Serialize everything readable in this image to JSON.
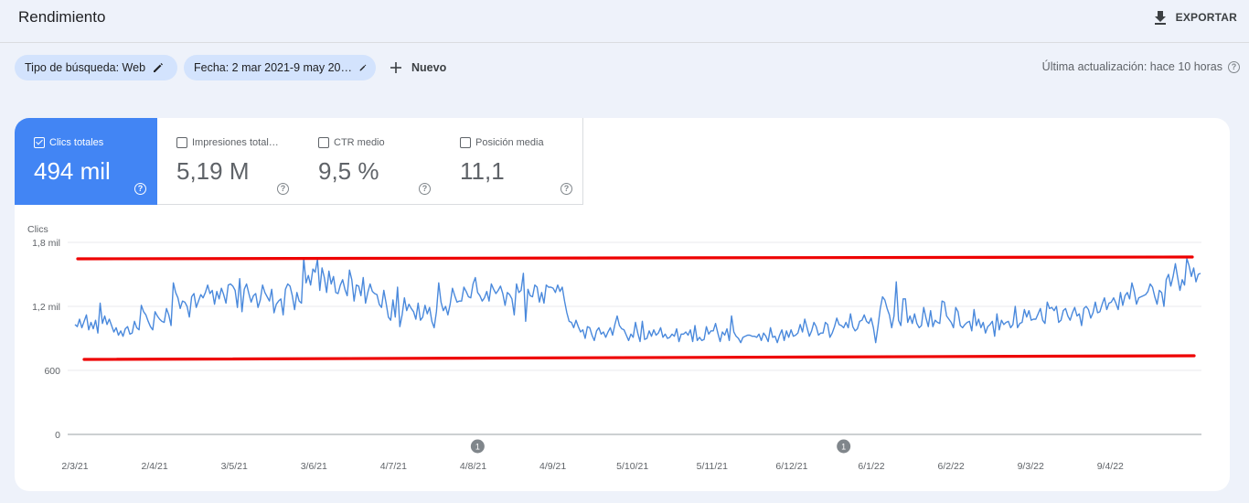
{
  "header": {
    "title": "Rendimiento",
    "export_label": "EXPORTAR"
  },
  "filters": {
    "search_type": "Tipo de búsqueda: Web",
    "date": "Fecha: 2 mar 2021-9 may 20…",
    "new_label": "Nuevo",
    "last_update": "Última actualización: hace 10 horas"
  },
  "metrics": [
    {
      "label": "Clics totales",
      "value": "494 mil",
      "selected": true
    },
    {
      "label": "Impresiones total…",
      "value": "5,19 M",
      "selected": false
    },
    {
      "label": "CTR medio",
      "value": "9,5 %",
      "selected": false
    },
    {
      "label": "Posición media",
      "value": "11,1",
      "selected": false
    }
  ],
  "colors": {
    "accent": "#4285f4",
    "line": "#4a89dc",
    "annotation": "#ee0000"
  },
  "chart_data": {
    "type": "line",
    "ylabel": "Clics",
    "ytick_labels": [
      "0",
      "600",
      "1,2 mil",
      "1,8 mil"
    ],
    "yticks": [
      0,
      600,
      1200,
      1800
    ],
    "ylim": [
      0,
      1800
    ],
    "xtick_labels": [
      "2/3/21",
      "2/4/21",
      "3/5/21",
      "3/6/21",
      "4/7/21",
      "4/8/21",
      "4/9/21",
      "5/10/21",
      "5/11/21",
      "6/12/21",
      "6/1/22",
      "6/2/22",
      "9/3/22",
      "9/4/22"
    ],
    "markers": [
      {
        "label": "1",
        "x": "25/8/21"
      },
      {
        "label": "1",
        "x": "1/2/22"
      }
    ],
    "grid": true,
    "series": [
      {
        "start": "2/3/21",
        "values": [
          1030,
          1010,
          1080,
          1000,
          1060,
          1120,
          980,
          1050,
          990,
          1070,
          950,
          1230,
          1040,
          1110,
          1030,
          1080,
          1020,
          960,
          1000,
          930,
          970,
          920,
          990,
          1010,
          940,
          950,
          1060,
          1000,
          980,
          1210,
          1150,
          1120,
          1060,
          1010,
          980,
          1150,
          1110,
          1080,
          1060,
          1050,
          1180,
          1120,
          1020,
          1420,
          1330,
          1280,
          1180,
          1250,
          1240,
          1200,
          1100,
          1290,
          1320,
          1190,
          1250,
          1310,
          1280,
          1330,
          1400,
          1320,
          1350,
          1220,
          1340,
          1270,
          1370,
          1310,
          1230,
          1400,
          1410,
          1390,
          1350,
          1190,
          1460,
          1150,
          1360,
          1410,
          1320,
          1240,
          1300,
          1320,
          1190,
          1260,
          1400,
          1330,
          1290,
          1250,
          1360,
          1140,
          1220,
          1250,
          1270,
          1120,
          1360,
          1410,
          1390,
          1300,
          1170,
          1330,
          1250,
          1230,
          1650,
          1420,
          1490,
          1400,
          1550,
          1520,
          1640,
          1350,
          1560,
          1470,
          1330,
          1530,
          1410,
          1480,
          1330,
          1320,
          1400,
          1450,
          1360,
          1300,
          1540,
          1450,
          1250,
          1400,
          1390,
          1300,
          1470,
          1230,
          1330,
          1410,
          1340,
          1320,
          1310,
          1220,
          1190,
          1350,
          1230,
          1100,
          1070,
          1260,
          1100,
          1380,
          1010,
          1120,
          1280,
          1160,
          1220,
          1180,
          1150,
          1080,
          1230,
          1070,
          1100,
          1210,
          1130,
          1190,
          1060,
          1000,
          1150,
          1420,
          1240,
          1160,
          1200,
          1120,
          1220,
          1370,
          1300,
          1240,
          1250,
          1250,
          1380,
          1340,
          1290,
          1280,
          1410,
          1470,
          1330,
          1300,
          1250,
          1280,
          1340,
          1250,
          1410,
          1360,
          1320,
          1350,
          1390,
          1320,
          1210,
          1330,
          1310,
          1270,
          1120,
          1410,
          1330,
          1350,
          1510,
          1060,
          1360,
          1300,
          1290,
          1400,
          1380,
          1240,
          1330,
          1230,
          1400,
          1380,
          1380,
          1370,
          1330,
          1400,
          1340,
          1380,
          1250,
          1140,
          1060,
          1050,
          1000,
          1070,
          1010,
          960,
          980,
          900,
          1010,
          1000,
          930,
          880,
          970,
          1000,
          940,
          960,
          910,
          960,
          1000,
          930,
          1030,
          1110,
          1020,
          990,
          980,
          930,
          880,
          940,
          910,
          1050,
          950,
          870,
          1060,
          890,
          900,
          970,
          920,
          980,
          930,
          950,
          1000,
          910,
          940,
          900,
          910,
          940,
          920,
          990,
          870,
          940,
          940,
          960,
          930,
          980,
          870,
          1020,
          880,
          910,
          880,
          890,
          1010,
          940,
          970,
          970,
          1040,
          950,
          870,
          960,
          930,
          990,
          880,
          1110,
          960,
          920,
          900,
          860,
          910,
          920,
          930,
          930,
          920,
          920,
          910,
          940,
          880,
          950,
          920,
          870,
          1000,
          910,
          920,
          860,
          930,
          980,
          880,
          970,
          910,
          980,
          920,
          930,
          950,
          1030,
          960,
          1080,
          1000,
          920,
          970,
          1050,
          1010,
          930,
          950,
          950,
          1050,
          1030,
          910,
          950,
          1010,
          1090,
          1030,
          1020,
          1000,
          1050,
          1000,
          1130,
          1010,
          970,
          990,
          1060,
          1070,
          1120,
          1060,
          1040,
          1090,
          1000,
          860,
          1010,
          1180,
          1290,
          1260,
          1180,
          1120,
          1000,
          1110,
          1430,
          1070,
          1020,
          1270,
          1270,
          1050,
          1110,
          1040,
          1130,
          1040,
          1000,
          1020,
          1190,
          1090,
          1010,
          1160,
          1010,
          1070,
          1050,
          1040,
          1250,
          1240,
          1110,
          1080,
          1050,
          1000,
          1190,
          1150,
          1020,
          1000,
          1030,
          1050,
          1060,
          970,
          1170,
          1020,
          1080,
          1000,
          1050,
          950,
          1010,
          1030,
          1060,
          920,
          1130,
          980,
          1070,
          1030,
          1050,
          1060,
          1000,
          1030,
          1200,
          1000,
          1040,
          1050,
          1170,
          1100,
          1160,
          1070,
          1080,
          1080,
          1130,
          1180,
          1070,
          1040,
          1240,
          1180,
          1190,
          1160,
          1200,
          1050,
          1070,
          1160,
          1180,
          1110,
          1070,
          1140,
          1190,
          1110,
          1130,
          1020,
          1180,
          1200,
          1170,
          1090,
          1140,
          1240,
          1140,
          1150,
          1220,
          1280,
          1170,
          1230,
          1240,
          1280,
          1230,
          1170,
          1330,
          1210,
          1300,
          1330,
          1270,
          1420,
          1340,
          1220,
          1280,
          1290,
          1300,
          1310,
          1340,
          1410,
          1380,
          1290,
          1220,
          1350,
          1330,
          1200,
          1450,
          1500,
          1390,
          1480,
          1600,
          1470,
          1350,
          1450,
          1400,
          1650,
          1580,
          1480,
          1560,
          1430,
          1500,
          1510
        ]
      }
    ]
  }
}
